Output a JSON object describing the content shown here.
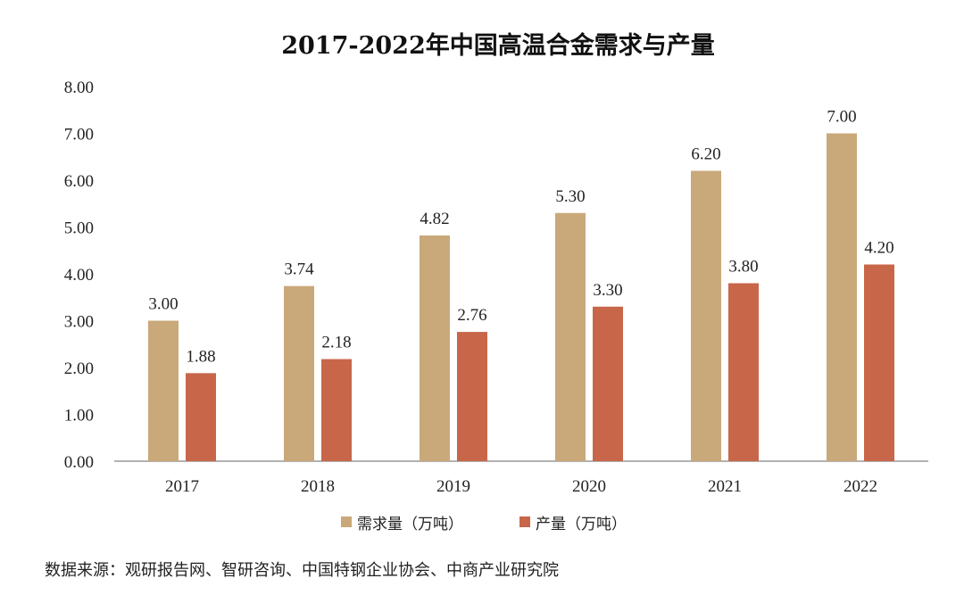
{
  "chart_data": {
    "type": "bar",
    "title": "2017-2022年中国高温合金需求与产量",
    "categories": [
      "2017",
      "2018",
      "2019",
      "2020",
      "2021",
      "2022"
    ],
    "series": [
      {
        "name": "需求量（万吨）",
        "color": "#C9A87A",
        "values": [
          3.0,
          3.74,
          4.82,
          5.3,
          6.2,
          7.0
        ]
      },
      {
        "name": "产量（万吨）",
        "color": "#C8664A",
        "values": [
          1.88,
          2.18,
          2.76,
          3.3,
          3.8,
          4.2
        ]
      }
    ],
    "ylim": [
      0,
      8
    ],
    "yticks": [
      "0.00",
      "1.00",
      "2.00",
      "3.00",
      "4.00",
      "5.00",
      "6.00",
      "7.00",
      "8.00"
    ],
    "xlabel": "",
    "ylabel": "",
    "legend_position": "bottom",
    "grid": false
  },
  "source_text": "数据来源：观研报告网、智研咨询、中国特钢企业协会、中商产业研究院"
}
